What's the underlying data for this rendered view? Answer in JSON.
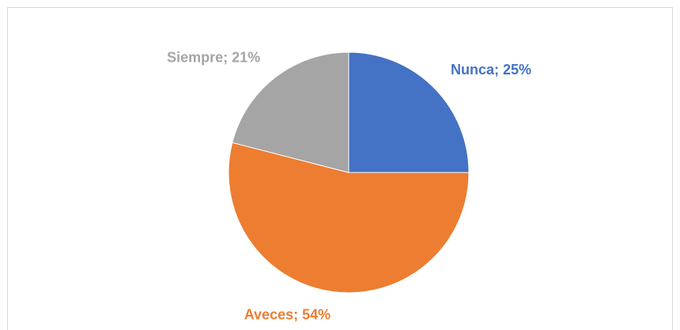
{
  "chart_data": {
    "type": "pie",
    "values": [
      25,
      54,
      21
    ],
    "value_labels": [
      "Nunca; 25%",
      "Aveces; 54%",
      "Siempre; 21%"
    ],
    "colors": [
      "#4472c4",
      "#ed7d31",
      "#a5a5a5"
    ]
  }
}
